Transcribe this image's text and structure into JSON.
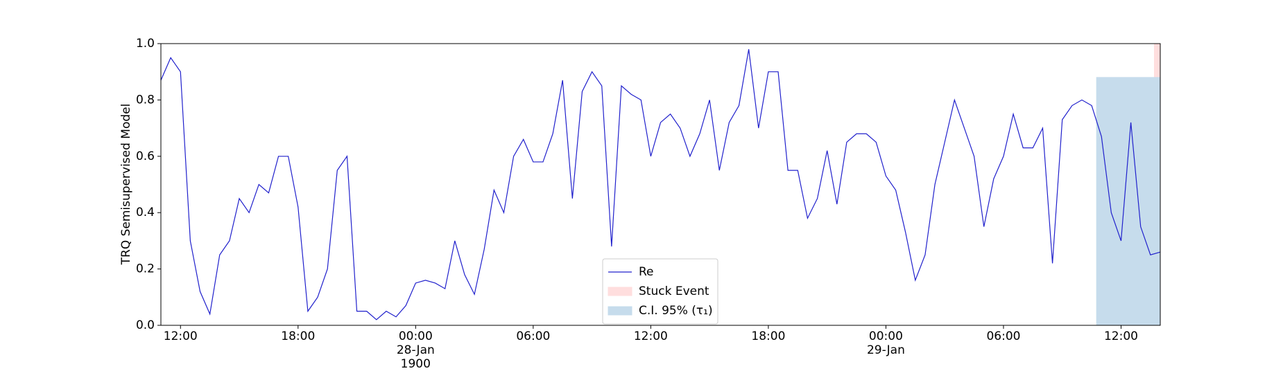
{
  "chart_data": {
    "type": "line",
    "ylabel": "TRQ Semisupervised Model",
    "xlim": [
      "1900-01-27T11:00",
      "1900-01-29T14:00"
    ],
    "xticks": [
      {
        "value": "1900-01-27T12:00",
        "label": "12:00"
      },
      {
        "value": "1900-01-27T18:00",
        "label": "18:00"
      },
      {
        "value": "1900-01-28T00:00",
        "label": "00:00\n28-Jan\n1900"
      },
      {
        "value": "1900-01-28T06:00",
        "label": "06:00"
      },
      {
        "value": "1900-01-28T12:00",
        "label": "12:00"
      },
      {
        "value": "1900-01-28T18:00",
        "label": "18:00"
      },
      {
        "value": "1900-01-29T00:00",
        "label": "00:00\n29-Jan"
      },
      {
        "value": "1900-01-29T06:00",
        "label": "06:00"
      },
      {
        "value": "1900-01-29T12:00",
        "label": "12:00"
      }
    ],
    "ylim": [
      0,
      1
    ],
    "yticks": [
      {
        "value": 0,
        "label": "0.0"
      },
      0.2,
      0.4,
      0.6,
      0.8,
      {
        "value": 1,
        "label": "1.0"
      }
    ],
    "x": [
      "1900-01-27T11:00",
      "1900-01-27T11:30",
      "1900-01-27T12:00",
      "1900-01-27T12:30",
      "1900-01-27T13:00",
      "1900-01-27T13:30",
      "1900-01-27T14:00",
      "1900-01-27T14:30",
      "1900-01-27T15:00",
      "1900-01-27T15:30",
      "1900-01-27T16:00",
      "1900-01-27T16:30",
      "1900-01-27T17:00",
      "1900-01-27T17:30",
      "1900-01-27T18:00",
      "1900-01-27T18:30",
      "1900-01-27T19:00",
      "1900-01-27T19:30",
      "1900-01-27T20:00",
      "1900-01-27T20:30",
      "1900-01-27T21:00",
      "1900-01-27T21:30",
      "1900-01-27T22:00",
      "1900-01-27T22:30",
      "1900-01-27T23:00",
      "1900-01-27T23:30",
      "1900-01-28T00:00",
      "1900-01-28T00:30",
      "1900-01-28T01:00",
      "1900-01-28T01:30",
      "1900-01-28T02:00",
      "1900-01-28T02:30",
      "1900-01-28T03:00",
      "1900-01-28T03:30",
      "1900-01-28T04:00",
      "1900-01-28T04:30",
      "1900-01-28T05:00",
      "1900-01-28T05:30",
      "1900-01-28T06:00",
      "1900-01-28T06:30",
      "1900-01-28T07:00",
      "1900-01-28T07:30",
      "1900-01-28T08:00",
      "1900-01-28T08:30",
      "1900-01-28T09:00",
      "1900-01-28T09:30",
      "1900-01-28T10:00",
      "1900-01-28T10:30",
      "1900-01-28T11:00",
      "1900-01-28T11:30",
      "1900-01-28T12:00",
      "1900-01-28T12:30",
      "1900-01-28T13:00",
      "1900-01-28T13:30",
      "1900-01-28T14:00",
      "1900-01-28T14:30",
      "1900-01-28T15:00",
      "1900-01-28T15:30",
      "1900-01-28T16:00",
      "1900-01-28T16:30",
      "1900-01-28T17:00",
      "1900-01-28T17:30",
      "1900-01-28T18:00",
      "1900-01-28T18:30",
      "1900-01-28T19:00",
      "1900-01-28T19:30",
      "1900-01-28T20:00",
      "1900-01-28T20:30",
      "1900-01-28T21:00",
      "1900-01-28T21:30",
      "1900-01-28T22:00",
      "1900-01-28T22:30",
      "1900-01-28T23:00",
      "1900-01-28T23:30",
      "1900-01-29T00:00",
      "1900-01-29T00:30",
      "1900-01-29T01:00",
      "1900-01-29T01:30",
      "1900-01-29T02:00",
      "1900-01-29T02:30",
      "1900-01-29T03:00",
      "1900-01-29T03:30",
      "1900-01-29T04:00",
      "1900-01-29T04:30",
      "1900-01-29T05:00",
      "1900-01-29T05:30",
      "1900-01-29T06:00",
      "1900-01-29T06:30",
      "1900-01-29T07:00",
      "1900-01-29T07:30",
      "1900-01-29T08:00",
      "1900-01-29T08:30",
      "1900-01-29T09:00",
      "1900-01-29T09:30",
      "1900-01-29T10:00",
      "1900-01-29T10:30",
      "1900-01-29T11:00",
      "1900-01-29T11:30",
      "1900-01-29T12:00",
      "1900-01-29T12:30",
      "1900-01-29T13:00",
      "1900-01-29T13:30",
      "1900-01-29T14:00"
    ],
    "series": [
      {
        "name": "Re",
        "color": "#2020cc",
        "values": [
          0.87,
          0.95,
          0.9,
          0.3,
          0.12,
          0.04,
          0.25,
          0.3,
          0.45,
          0.4,
          0.5,
          0.47,
          0.6,
          0.6,
          0.42,
          0.05,
          0.1,
          0.2,
          0.55,
          0.6,
          0.05,
          0.05,
          0.02,
          0.05,
          0.03,
          0.07,
          0.15,
          0.16,
          0.15,
          0.13,
          0.3,
          0.18,
          0.11,
          0.27,
          0.48,
          0.4,
          0.6,
          0.66,
          0.58,
          0.58,
          0.68,
          0.87,
          0.45,
          0.83,
          0.9,
          0.85,
          0.28,
          0.85,
          0.82,
          0.8,
          0.6,
          0.72,
          0.75,
          0.7,
          0.6,
          0.68,
          0.8,
          0.55,
          0.72,
          0.78,
          0.98,
          0.7,
          0.9,
          0.9,
          0.55,
          0.55,
          0.38,
          0.45,
          0.62,
          0.43,
          0.65,
          0.68,
          0.68,
          0.65,
          0.53,
          0.48,
          0.33,
          0.16,
          0.25,
          0.5,
          0.65,
          0.8,
          0.7,
          0.6,
          0.35,
          0.52,
          0.6,
          0.75,
          0.63,
          0.63,
          0.7,
          0.22,
          0.73,
          0.78,
          0.8,
          0.78,
          0.67,
          0.4,
          0.3,
          0.72,
          0.35,
          0.25,
          0.26
        ]
      }
    ],
    "regions": [
      {
        "name": "Stuck Event",
        "color": "#ffdede",
        "x": [
          "1900-01-29T13:42",
          "1900-01-29T14:00"
        ]
      },
      {
        "name": "C.I. 95% (τ₁)",
        "color": "#c6dcec",
        "x": [
          "1900-01-29T10:45",
          "1900-01-29T14:00"
        ],
        "upper": 0.88
      }
    ]
  }
}
